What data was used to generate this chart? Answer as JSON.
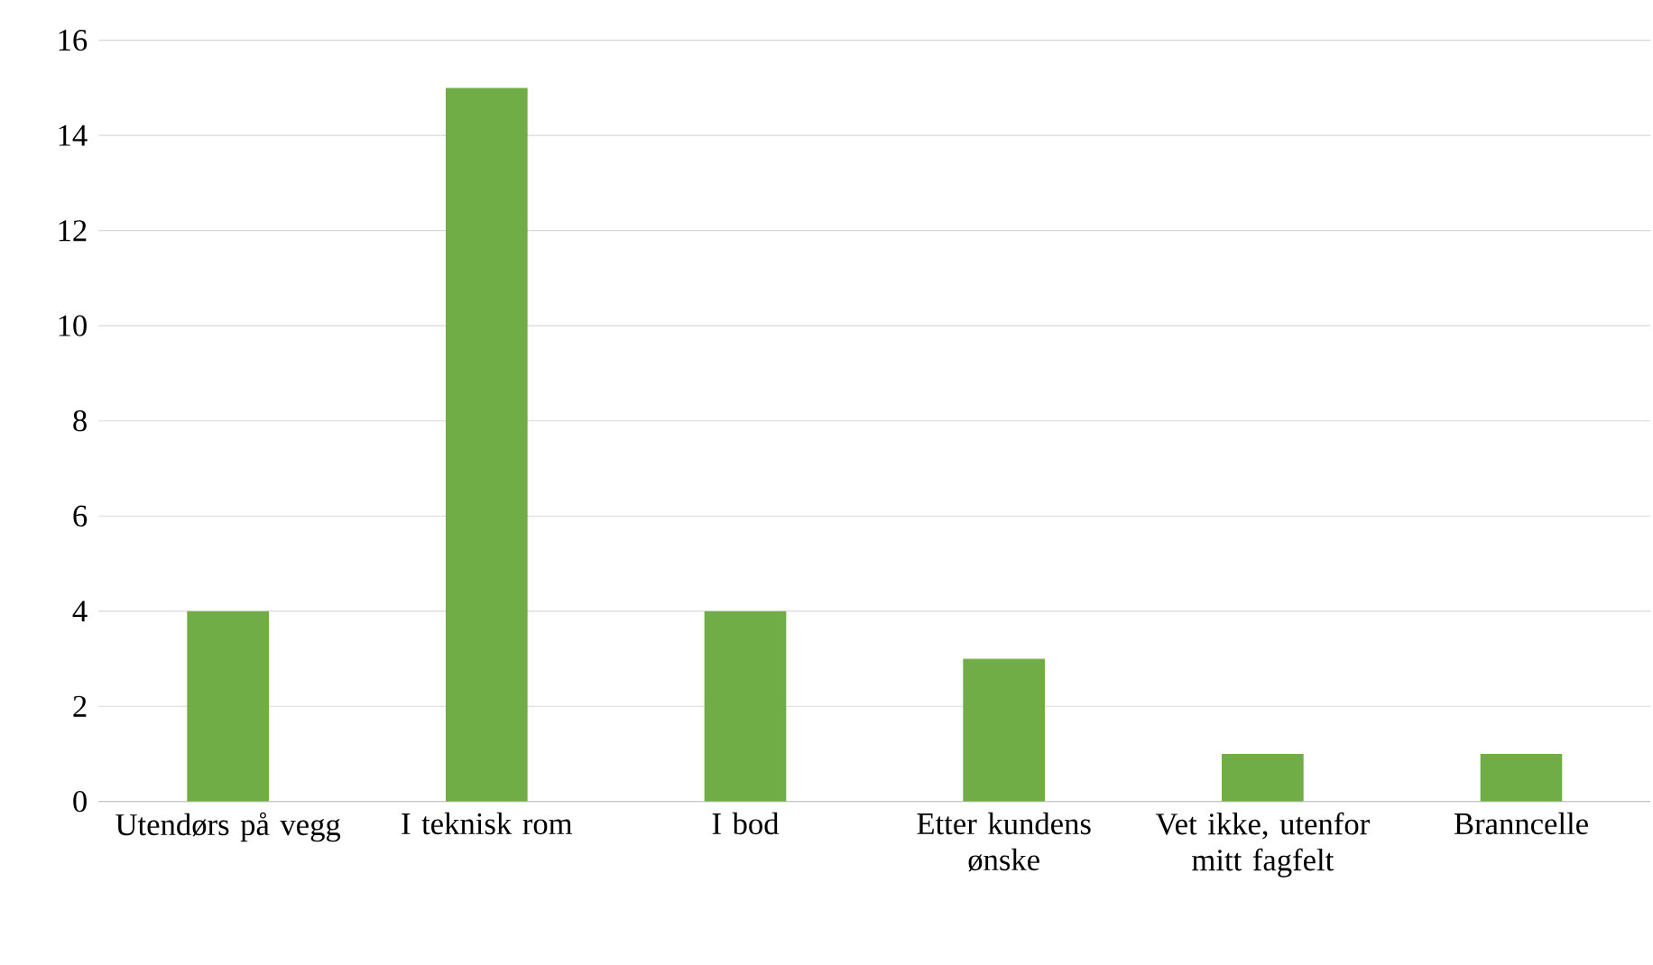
{
  "chart_data": {
    "type": "bar",
    "categories": [
      "Utendørs på vegg",
      "I teknisk rom",
      "I bod",
      "Etter kundens ønske",
      "Vet ikke, utenfor mitt fagfelt",
      "Branncelle"
    ],
    "values": [
      4,
      15,
      4,
      3,
      1,
      1
    ],
    "color": "#70ad47",
    "ylim": [
      0,
      16
    ],
    "yticks": [
      0,
      2,
      4,
      6,
      8,
      10,
      12,
      14,
      16
    ],
    "grid": "y"
  }
}
